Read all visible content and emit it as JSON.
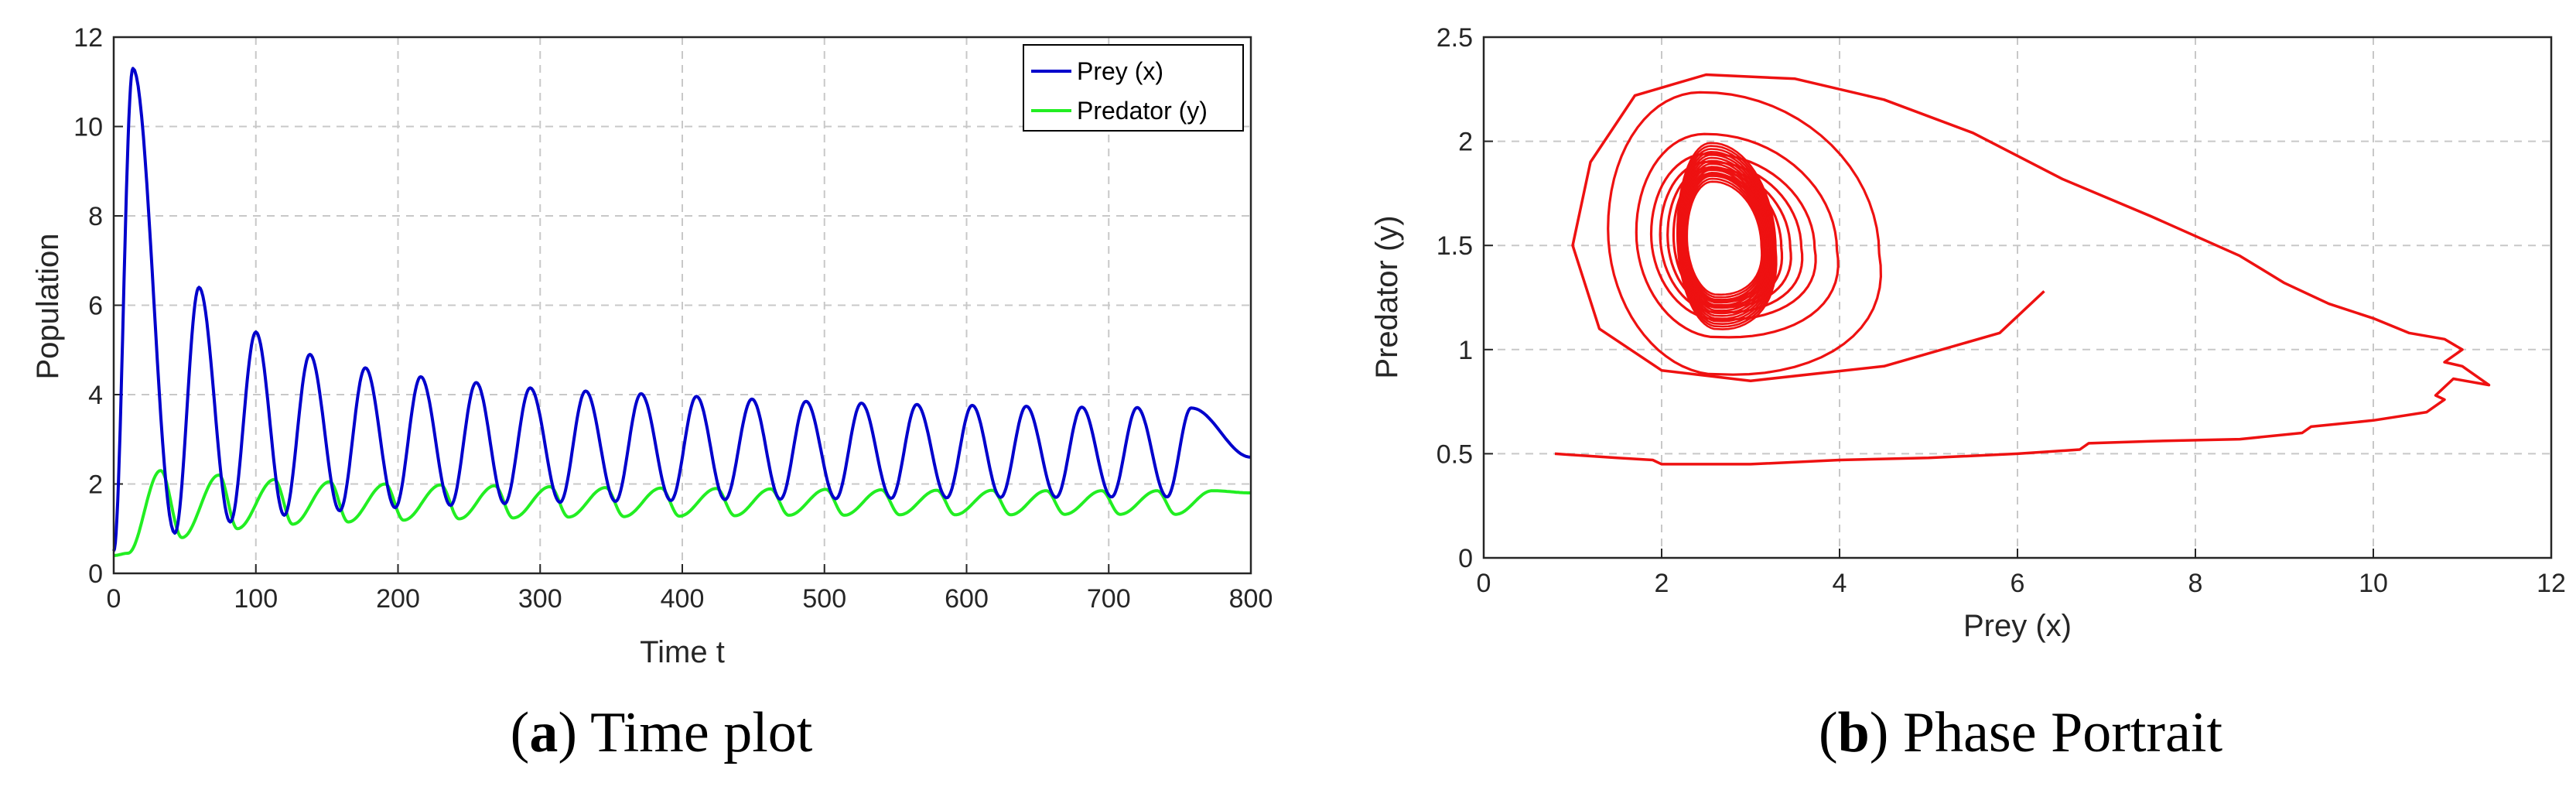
{
  "chart_data": [
    {
      "type": "line",
      "caption_letter": "a",
      "caption_text": "Time plot",
      "xlabel": "Time t",
      "ylabel": "Population",
      "xlim": [
        0,
        800
      ],
      "ylim": [
        0,
        12
      ],
      "xticks": [
        "0",
        "100",
        "200",
        "300",
        "400",
        "500",
        "600",
        "700",
        "800"
      ],
      "yticks": [
        "0",
        "2",
        "4",
        "6",
        "8",
        "10",
        "12"
      ],
      "grid": true,
      "legend_position": "top-right",
      "series": [
        {
          "name": "Prey (x)",
          "color": "#0000cc",
          "peaks": [
            [
              13.5,
              11.3
            ],
            [
              60,
              6.4
            ],
            [
              100,
              5.4
            ],
            [
              138,
              4.9
            ],
            [
              177,
              4.6
            ],
            [
              216,
              4.4
            ],
            [
              255,
              4.27
            ],
            [
              293,
              4.15
            ],
            [
              332,
              4.08
            ],
            [
              371,
              4.02
            ],
            [
              410,
              3.96
            ],
            [
              449,
              3.9
            ],
            [
              487,
              3.85
            ],
            [
              526,
              3.81
            ],
            [
              565,
              3.78
            ],
            [
              604,
              3.76
            ],
            [
              642,
              3.74
            ],
            [
              681,
              3.72
            ],
            [
              720,
              3.71
            ],
            [
              758,
              3.7
            ]
          ],
          "troughs": [
            [
              0,
              0.5
            ],
            [
              43,
              0.9
            ],
            [
              82,
              1.15
            ],
            [
              120,
              1.3
            ],
            [
              159,
              1.4
            ],
            [
              198,
              1.47
            ],
            [
              237,
              1.52
            ],
            [
              275,
              1.56
            ],
            [
              314,
              1.59
            ],
            [
              353,
              1.61
            ],
            [
              392,
              1.63
            ],
            [
              430,
              1.65
            ],
            [
              469,
              1.66
            ],
            [
              508,
              1.67
            ],
            [
              547,
              1.68
            ],
            [
              586,
              1.69
            ],
            [
              624,
              1.7
            ],
            [
              663,
              1.7
            ],
            [
              702,
              1.71
            ],
            [
              741,
              1.71
            ],
            [
              800,
              2.6
            ]
          ]
        },
        {
          "name": "Predator (y)",
          "color": "#22ee22",
          "peaks": [
            [
              33,
              2.3
            ],
            [
              74,
              2.2
            ],
            [
              113,
              2.1
            ],
            [
              152,
              2.05
            ],
            [
              191,
              2.0
            ],
            [
              230,
              1.98
            ],
            [
              268,
              1.96
            ],
            [
              307,
              1.94
            ],
            [
              346,
              1.92
            ],
            [
              385,
              1.91
            ],
            [
              424,
              1.9
            ],
            [
              462,
              1.89
            ],
            [
              501,
              1.88
            ],
            [
              540,
              1.87
            ],
            [
              579,
              1.86
            ],
            [
              618,
              1.86
            ],
            [
              656,
              1.85
            ],
            [
              695,
              1.85
            ],
            [
              734,
              1.85
            ],
            [
              773,
              1.85
            ]
          ],
          "troughs": [
            [
              0,
              0.4
            ],
            [
              10,
              0.45
            ],
            [
              48,
              0.8
            ],
            [
              87,
              1.0
            ],
            [
              126,
              1.1
            ],
            [
              165,
              1.15
            ],
            [
              204,
              1.19
            ],
            [
              243,
              1.22
            ],
            [
              281,
              1.24
            ],
            [
              320,
              1.26
            ],
            [
              359,
              1.27
            ],
            [
              398,
              1.28
            ],
            [
              437,
              1.29
            ],
            [
              475,
              1.3
            ],
            [
              514,
              1.3
            ],
            [
              553,
              1.31
            ],
            [
              592,
              1.31
            ],
            [
              631,
              1.31
            ],
            [
              669,
              1.32
            ],
            [
              708,
              1.32
            ],
            [
              747,
              1.32
            ],
            [
              800,
              1.8
            ]
          ]
        }
      ]
    },
    {
      "type": "line",
      "caption_letter": "b",
      "caption_text": "Phase Portrait",
      "xlabel": "Prey (x)",
      "ylabel": "Predator (y)",
      "xlim": [
        0,
        12
      ],
      "ylim": [
        0,
        2.5
      ],
      "xticks": [
        "0",
        "2",
        "4",
        "6",
        "8",
        "10",
        "12"
      ],
      "yticks": [
        "0",
        "0.5",
        "1",
        "1.5",
        "2",
        "2.5"
      ],
      "grid": true,
      "series": [
        {
          "name": "trajectory",
          "color": "#ee1111",
          "path": [
            [
              0.8,
              0.5
            ],
            [
              1.5,
              0.48
            ],
            [
              1.9,
              0.47
            ],
            [
              2.0,
              0.45
            ],
            [
              3.0,
              0.45
            ],
            [
              4.0,
              0.47
            ],
            [
              5.0,
              0.48
            ],
            [
              6.0,
              0.5
            ],
            [
              6.7,
              0.52
            ],
            [
              6.8,
              0.55
            ],
            [
              7.5,
              0.56
            ],
            [
              8.5,
              0.57
            ],
            [
              9.2,
              0.6
            ],
            [
              9.3,
              0.63
            ],
            [
              10.0,
              0.66
            ],
            [
              10.6,
              0.7
            ],
            [
              10.8,
              0.76
            ],
            [
              10.7,
              0.78
            ],
            [
              10.9,
              0.86
            ],
            [
              11.3,
              0.83
            ],
            [
              11.0,
              0.92
            ],
            [
              10.8,
              0.94
            ],
            [
              11.0,
              1.0
            ],
            [
              10.8,
              1.05
            ],
            [
              10.4,
              1.08
            ],
            [
              10.0,
              1.15
            ],
            [
              9.5,
              1.22
            ],
            [
              9.0,
              1.32
            ],
            [
              8.5,
              1.45
            ],
            [
              7.5,
              1.64
            ],
            [
              6.5,
              1.82
            ],
            [
              5.5,
              2.04
            ],
            [
              4.5,
              2.2
            ],
            [
              3.5,
              2.3
            ],
            [
              2.5,
              2.32
            ],
            [
              1.7,
              2.22
            ],
            [
              1.2,
              1.9
            ],
            [
              1.0,
              1.5
            ],
            [
              1.3,
              1.1
            ],
            [
              2.0,
              0.9
            ],
            [
              3.0,
              0.85
            ],
            [
              4.5,
              0.92
            ],
            [
              5.8,
              1.08
            ],
            [
              6.3,
              1.28
            ]
          ],
          "limit_cycle_center": [
            2.62,
            1.52
          ],
          "limit_cycle_radii": [
            1.0,
            0.3
          ],
          "inner_spiral_radii": [
            [
              3.65,
              0.75
            ],
            [
              2.7,
              0.54
            ],
            [
              2.2,
              0.44
            ],
            [
              1.9,
              0.4
            ],
            [
              1.65,
              0.37
            ],
            [
              1.45,
              0.36
            ],
            [
              1.3,
              0.34
            ],
            [
              1.2,
              0.33
            ]
          ]
        }
      ]
    }
  ]
}
